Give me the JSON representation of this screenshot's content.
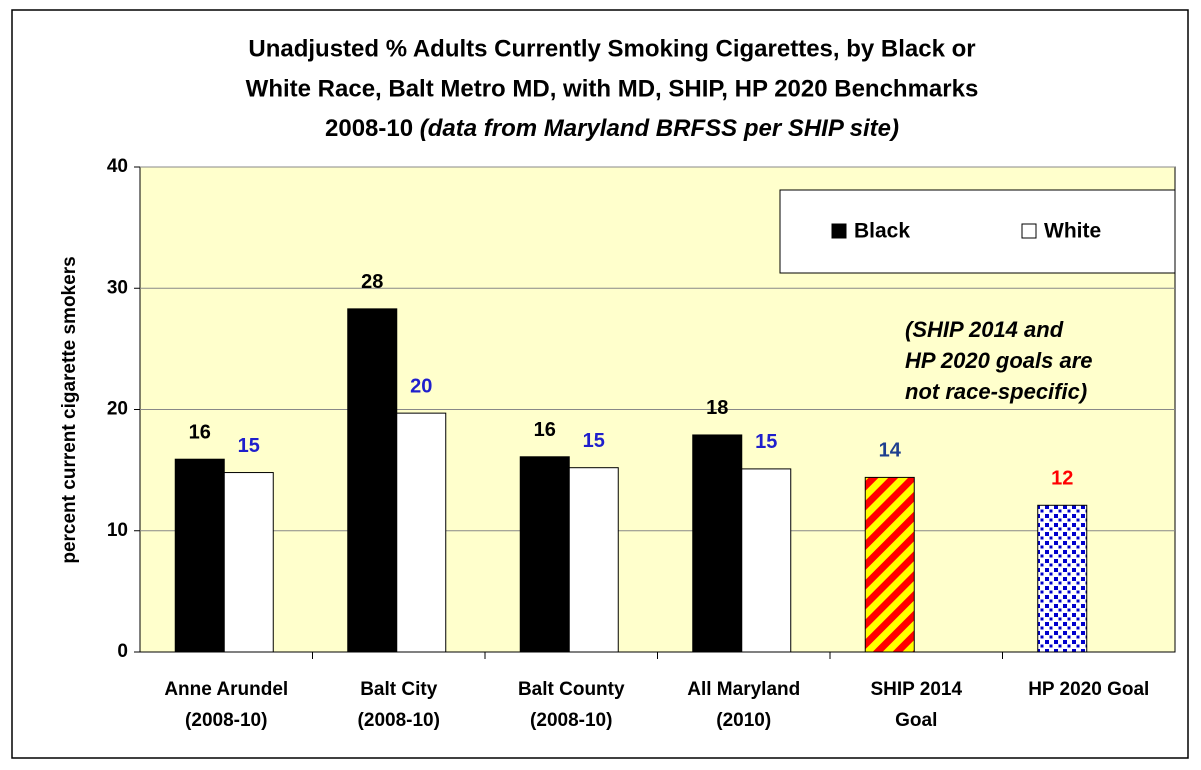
{
  "chart_data": {
    "type": "bar",
    "title": [
      "Unadjusted % Adults Currently Smoking Cigarettes, by Black or",
      "White Race, Balt Metro MD, with MD, SHIP, HP 2020 Benchmarks",
      "2008-10",
      "(data from Maryland BRFSS per SHIP site)"
    ],
    "ylabel": "percent current cigarette smokers",
    "categories": [
      [
        "Anne Arundel",
        "(2008-10)"
      ],
      [
        "Balt City",
        "(2008-10)"
      ],
      [
        "Balt County",
        "(2008-10)"
      ],
      [
        "All Maryland",
        "(2010)"
      ],
      [
        "SHIP 2014",
        "Goal"
      ],
      [
        "HP 2020 Goal"
      ]
    ],
    "series": [
      {
        "name": "Black",
        "color": "#000000",
        "label_color": "#000000",
        "values": [
          15.9,
          28.3,
          16.1,
          17.9,
          null,
          null
        ],
        "value_labels": [
          "16",
          "28",
          "16",
          "18",
          null,
          null
        ]
      },
      {
        "name": "White",
        "color": "#ffffff",
        "label_color": "#1f1fcc",
        "values": [
          14.8,
          19.7,
          15.2,
          15.1,
          null,
          null
        ],
        "value_labels": [
          "15",
          "20",
          "15",
          "15",
          null,
          null
        ]
      }
    ],
    "benchmarks": {
      "values": [
        null,
        null,
        null,
        null,
        14.4,
        12.1
      ],
      "value_labels": [
        null,
        null,
        null,
        null,
        "14",
        "12"
      ],
      "label_colors": [
        null,
        null,
        null,
        null,
        "#1f3f8f",
        "#ff0000"
      ],
      "patterns": [
        null,
        null,
        null,
        null,
        {
          "type": "stripes",
          "colors": [
            "#ffff00",
            "#ff0000"
          ]
        },
        {
          "type": "dots",
          "colors": [
            "#ffffff",
            "#0000cc"
          ]
        }
      ]
    },
    "annotation": [
      "(SHIP 2014 and",
      "HP 2020 goals are",
      "not race-specific)"
    ],
    "ylim": [
      0,
      40
    ],
    "yticks": [
      0,
      10,
      20,
      30,
      40
    ],
    "grid": true,
    "plot_background": "#ffffcc",
    "legend": "top-right"
  }
}
